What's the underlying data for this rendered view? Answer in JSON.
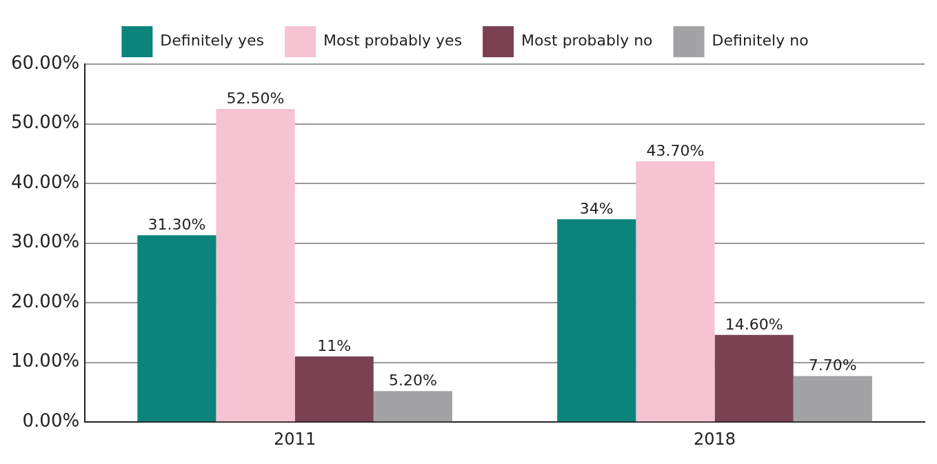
{
  "chart_data": {
    "type": "bar",
    "categories": [
      "2011",
      "2018"
    ],
    "series": [
      {
        "name": "Definitely yes",
        "color": "#0b857c",
        "values": [
          31.3,
          34
        ],
        "value_labels": [
          "31.30%",
          "34%"
        ]
      },
      {
        "name": "Most probably yes",
        "color": "#f7c2d1",
        "values": [
          52.5,
          43.7
        ],
        "value_labels": [
          "52.50%",
          "43.70%"
        ]
      },
      {
        "name": "Most probably no",
        "color": "#7a4153",
        "values": [
          11,
          14.6
        ],
        "value_labels": [
          "11%",
          "14.60%"
        ]
      },
      {
        "name": "Definitely no",
        "color": "#a3a3a6",
        "values": [
          5.2,
          7.7
        ],
        "value_labels": [
          "5.20%",
          "7.70%"
        ]
      }
    ],
    "ylim": [
      0,
      60
    ],
    "yticks": [
      {
        "value": 0,
        "label": "0.00%"
      },
      {
        "value": 10,
        "label": "10.00%"
      },
      {
        "value": 20,
        "label": "20.00%"
      },
      {
        "value": 30,
        "label": "30.00%"
      },
      {
        "value": 40,
        "label": "40.00%"
      },
      {
        "value": 50,
        "label": "50.00%"
      },
      {
        "value": 60,
        "label": "60.00%"
      }
    ],
    "grid": "y",
    "legend": "top"
  }
}
